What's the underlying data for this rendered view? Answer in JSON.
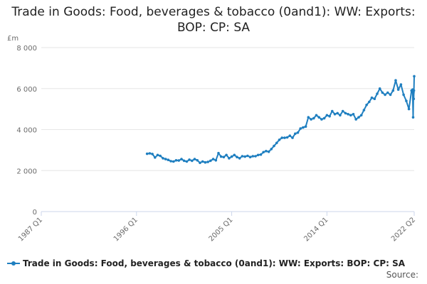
{
  "chart_data": {
    "type": "line",
    "title": "Trade in Goods: Food, beverages & tobacco (0and1): WW: Exports: BOP: CP: SA",
    "ylabel": "£m",
    "xlabel": "",
    "ylim": [
      0,
      8000
    ],
    "yticks": [
      0,
      2000,
      4000,
      6000,
      8000
    ],
    "ytick_labels": [
      "0",
      "2 000",
      "4 000",
      "6 000",
      "8 000"
    ],
    "xticks": [
      1987,
      1996,
      2005,
      2014,
      2022.25
    ],
    "xtick_labels": [
      "1987 Q1",
      "1996 Q1",
      "2005 Q1",
      "2014 Q1",
      "2022 Q2"
    ],
    "xlim": [
      1987,
      2022.25
    ],
    "grid": true,
    "legend_position": "bottom-left",
    "series": [
      {
        "name": "Trade in Goods: Food, beverages & tobacco (0and1): WW: Exports: BOP: CP: SA",
        "color": "#1f7fc0",
        "points": [
          [
            1997.0,
            2820
          ],
          [
            1997.25,
            2840
          ],
          [
            1997.5,
            2810
          ],
          [
            1997.75,
            2640
          ],
          [
            1998.0,
            2760
          ],
          [
            1998.25,
            2720
          ],
          [
            1998.5,
            2600
          ],
          [
            1998.75,
            2560
          ],
          [
            1999.0,
            2520
          ],
          [
            1999.25,
            2460
          ],
          [
            1999.5,
            2440
          ],
          [
            1999.75,
            2500
          ],
          [
            2000.0,
            2490
          ],
          [
            2000.25,
            2560
          ],
          [
            2000.5,
            2480
          ],
          [
            2000.75,
            2440
          ],
          [
            2001.0,
            2530
          ],
          [
            2001.25,
            2480
          ],
          [
            2001.5,
            2560
          ],
          [
            2001.75,
            2500
          ],
          [
            2002.0,
            2380
          ],
          [
            2002.25,
            2440
          ],
          [
            2002.5,
            2400
          ],
          [
            2002.75,
            2420
          ],
          [
            2003.0,
            2480
          ],
          [
            2003.25,
            2560
          ],
          [
            2003.5,
            2500
          ],
          [
            2003.75,
            2850
          ],
          [
            2004.0,
            2680
          ],
          [
            2004.25,
            2660
          ],
          [
            2004.5,
            2760
          ],
          [
            2004.75,
            2600
          ],
          [
            2005.0,
            2680
          ],
          [
            2005.25,
            2760
          ],
          [
            2005.5,
            2660
          ],
          [
            2005.75,
            2600
          ],
          [
            2006.0,
            2700
          ],
          [
            2006.25,
            2680
          ],
          [
            2006.5,
            2720
          ],
          [
            2006.75,
            2660
          ],
          [
            2007.0,
            2700
          ],
          [
            2007.25,
            2700
          ],
          [
            2007.5,
            2760
          ],
          [
            2007.75,
            2780
          ],
          [
            2008.0,
            2900
          ],
          [
            2008.25,
            2950
          ],
          [
            2008.5,
            2920
          ],
          [
            2008.75,
            3050
          ],
          [
            2009.0,
            3200
          ],
          [
            2009.25,
            3350
          ],
          [
            2009.5,
            3500
          ],
          [
            2009.75,
            3600
          ],
          [
            2010.0,
            3600
          ],
          [
            2010.25,
            3620
          ],
          [
            2010.5,
            3700
          ],
          [
            2010.75,
            3600
          ],
          [
            2011.0,
            3800
          ],
          [
            2011.25,
            3850
          ],
          [
            2011.5,
            4050
          ],
          [
            2011.75,
            4100
          ],
          [
            2012.0,
            4150
          ],
          [
            2012.25,
            4600
          ],
          [
            2012.5,
            4500
          ],
          [
            2012.75,
            4550
          ],
          [
            2013.0,
            4700
          ],
          [
            2013.25,
            4600
          ],
          [
            2013.5,
            4500
          ],
          [
            2013.75,
            4550
          ],
          [
            2014.0,
            4700
          ],
          [
            2014.25,
            4650
          ],
          [
            2014.5,
            4900
          ],
          [
            2014.75,
            4750
          ],
          [
            2015.0,
            4800
          ],
          [
            2015.25,
            4700
          ],
          [
            2015.5,
            4900
          ],
          [
            2015.75,
            4800
          ],
          [
            2016.0,
            4750
          ],
          [
            2016.25,
            4700
          ],
          [
            2016.5,
            4750
          ],
          [
            2016.75,
            4500
          ],
          [
            2017.0,
            4600
          ],
          [
            2017.25,
            4700
          ],
          [
            2017.5,
            4950
          ],
          [
            2017.75,
            5200
          ],
          [
            2018.0,
            5350
          ],
          [
            2018.25,
            5550
          ],
          [
            2018.5,
            5500
          ],
          [
            2018.75,
            5750
          ],
          [
            2019.0,
            6000
          ],
          [
            2019.25,
            5800
          ],
          [
            2019.5,
            5700
          ],
          [
            2019.75,
            5800
          ],
          [
            2020.0,
            5700
          ],
          [
            2020.25,
            5900
          ],
          [
            2020.5,
            6400
          ],
          [
            2020.75,
            5950
          ],
          [
            2021.0,
            6200
          ],
          [
            2021.25,
            5700
          ],
          [
            2021.5,
            5400
          ],
          [
            2021.75,
            5000
          ],
          [
            2022.0,
            5900
          ],
          [
            2022.1,
            5950
          ],
          [
            2022.15,
            4600
          ],
          [
            2022.18,
            5800
          ],
          [
            2022.2,
            5500
          ],
          [
            2022.22,
            5900
          ],
          [
            2022.25,
            6600
          ]
        ]
      }
    ],
    "source": "Source:"
  }
}
